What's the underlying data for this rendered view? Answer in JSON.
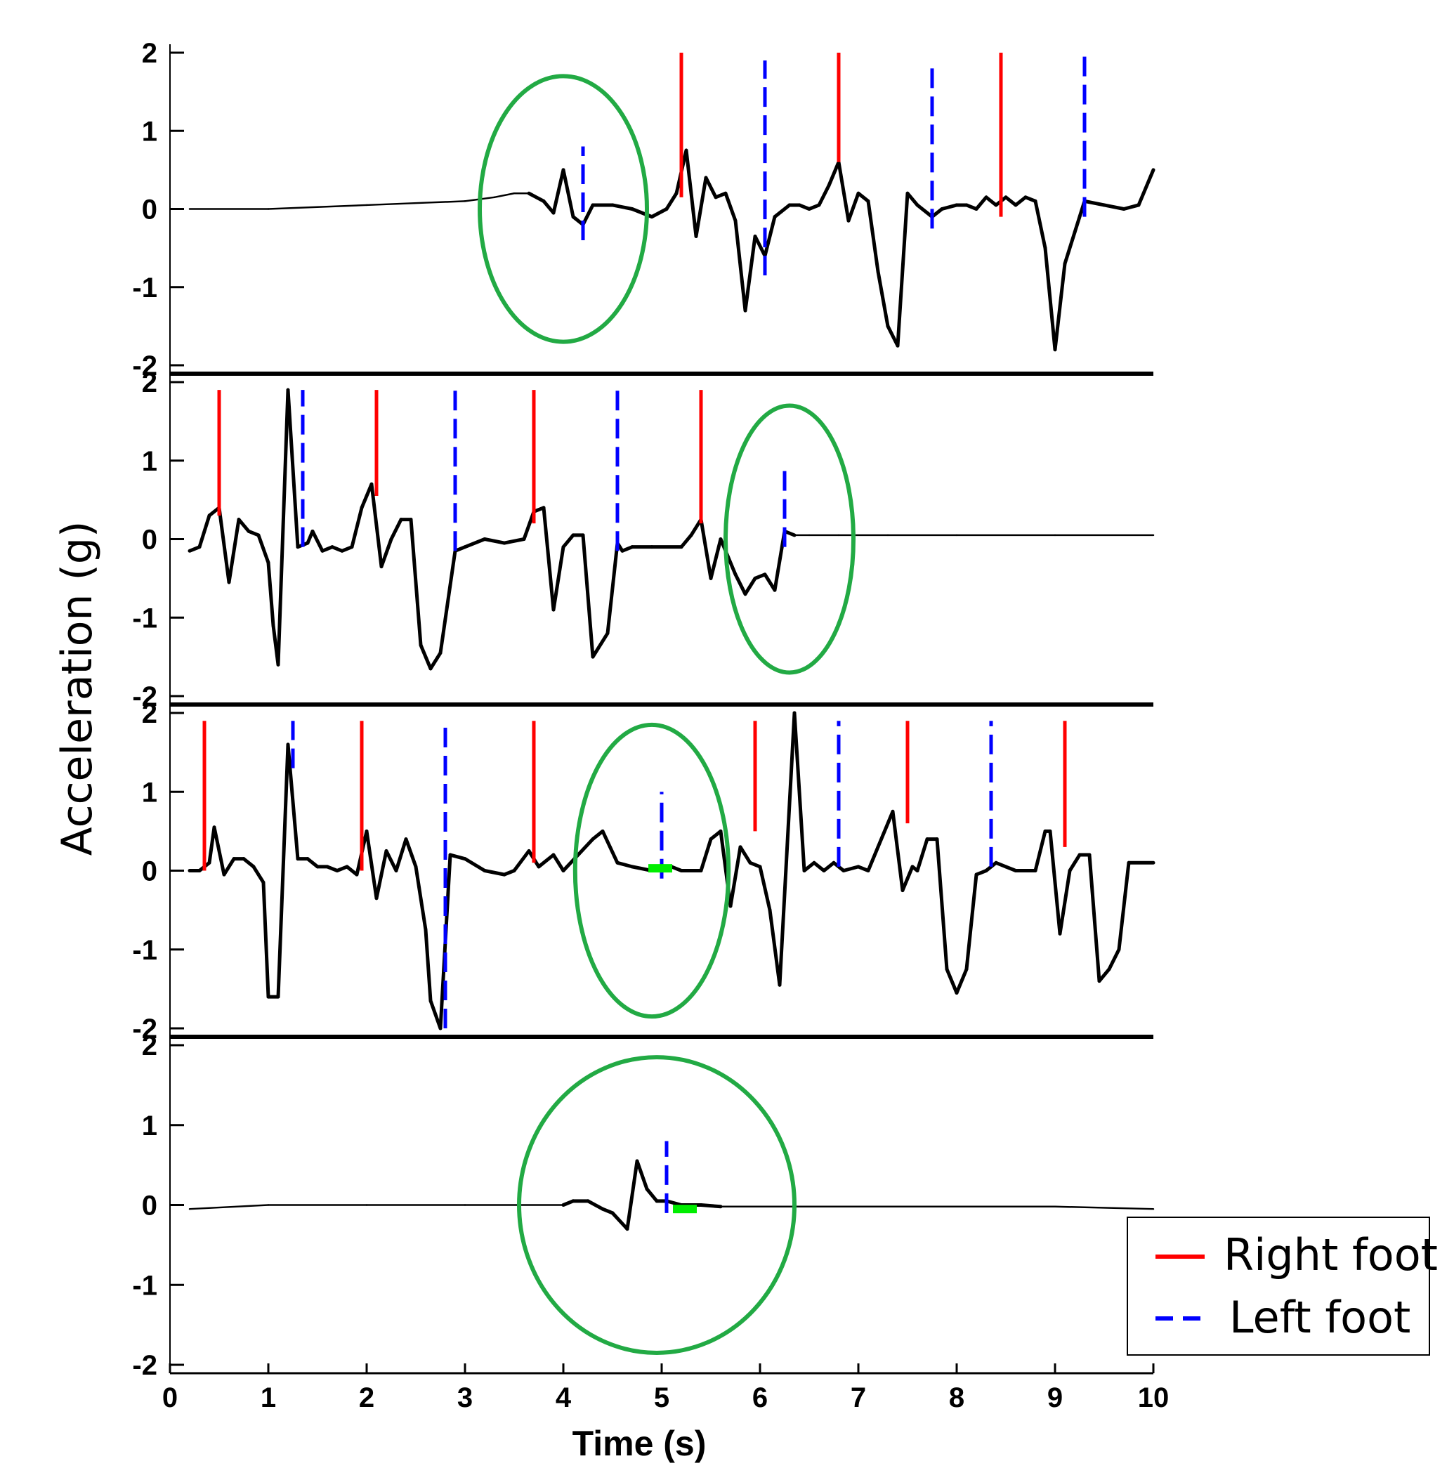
{
  "chart_data": {
    "type": "line",
    "ylabel": "Acceleration (g)",
    "xlabel": "Time (s)",
    "xlim": [
      0,
      10
    ],
    "ylim": [
      -2,
      2
    ],
    "x_ticks": [
      "0",
      "1",
      "2",
      "3",
      "4",
      "5",
      "6",
      "7",
      "8",
      "9",
      "10"
    ],
    "y_ticks": [
      "2",
      "1",
      "0",
      "-1",
      "-2"
    ],
    "colors": {
      "signal": "#000000",
      "right": "#ff0000",
      "left": "#0000ff",
      "circle": "#22aa44",
      "marker": "#00ee00"
    },
    "legend": [
      {
        "name": "Right foot",
        "style": "solid",
        "color": "#ff0000"
      },
      {
        "name": "Left foot",
        "style": "dashed",
        "color": "#0000ff"
      }
    ],
    "panels": [
      {
        "signal": [
          [
            0.2,
            0.0
          ],
          [
            1.0,
            0.0
          ],
          [
            2.0,
            0.05
          ],
          [
            3.0,
            0.1
          ],
          [
            3.3,
            0.15
          ],
          [
            3.5,
            0.2
          ],
          [
            3.65,
            0.2
          ],
          [
            3.8,
            0.1
          ],
          [
            3.9,
            -0.05
          ],
          [
            4.0,
            0.5
          ],
          [
            4.1,
            -0.1
          ],
          [
            4.2,
            -0.2
          ],
          [
            4.3,
            0.05
          ],
          [
            4.5,
            0.05
          ],
          [
            4.7,
            0.0
          ],
          [
            4.9,
            -0.1
          ],
          [
            5.05,
            0.0
          ],
          [
            5.15,
            0.2
          ],
          [
            5.25,
            0.75
          ],
          [
            5.35,
            -0.35
          ],
          [
            5.45,
            0.4
          ],
          [
            5.55,
            0.15
          ],
          [
            5.65,
            0.2
          ],
          [
            5.75,
            -0.15
          ],
          [
            5.85,
            -1.3
          ],
          [
            5.95,
            -0.35
          ],
          [
            6.05,
            -0.6
          ],
          [
            6.15,
            -0.1
          ],
          [
            6.3,
            0.05
          ],
          [
            6.4,
            0.05
          ],
          [
            6.5,
            0.0
          ],
          [
            6.6,
            0.05
          ],
          [
            6.7,
            0.3
          ],
          [
            6.8,
            0.6
          ],
          [
            6.9,
            -0.15
          ],
          [
            7.0,
            0.2
          ],
          [
            7.1,
            0.1
          ],
          [
            7.2,
            -0.8
          ],
          [
            7.3,
            -1.5
          ],
          [
            7.4,
            -1.75
          ],
          [
            7.5,
            0.2
          ],
          [
            7.6,
            0.05
          ],
          [
            7.75,
            -0.1
          ],
          [
            7.85,
            0.0
          ],
          [
            8.0,
            0.05
          ],
          [
            8.1,
            0.05
          ],
          [
            8.2,
            0.0
          ],
          [
            8.3,
            0.15
          ],
          [
            8.4,
            0.05
          ],
          [
            8.5,
            0.15
          ],
          [
            8.6,
            0.05
          ],
          [
            8.7,
            0.15
          ],
          [
            8.8,
            0.1
          ],
          [
            8.9,
            -0.5
          ],
          [
            9.0,
            -1.8
          ],
          [
            9.1,
            -0.7
          ],
          [
            9.2,
            -0.3
          ],
          [
            9.3,
            0.1
          ],
          [
            9.5,
            0.05
          ],
          [
            9.7,
            0.0
          ],
          [
            9.85,
            0.05
          ],
          [
            10.0,
            0.5
          ]
        ],
        "thin_until": 3.7,
        "right_foot": [
          [
            5.2,
            0.15,
            2.0
          ],
          [
            6.8,
            0.6,
            2.0
          ],
          [
            8.45,
            -0.1,
            2.0
          ]
        ],
        "left_foot": [
          [
            4.2,
            -0.4,
            0.8
          ],
          [
            6.05,
            -0.85,
            1.9
          ],
          [
            7.75,
            -0.25,
            1.9
          ],
          [
            9.3,
            -0.1,
            2.0
          ]
        ],
        "circle": {
          "cx": 4.0,
          "cy": 0.0,
          "rx": 0.85,
          "ry": 1.7
        },
        "marker": null
      },
      {
        "signal": [
          [
            0.2,
            -0.15
          ],
          [
            0.3,
            -0.1
          ],
          [
            0.4,
            0.3
          ],
          [
            0.5,
            0.4
          ],
          [
            0.6,
            -0.55
          ],
          [
            0.7,
            0.25
          ],
          [
            0.8,
            0.1
          ],
          [
            0.9,
            0.05
          ],
          [
            1.0,
            -0.3
          ],
          [
            1.05,
            -1.1
          ],
          [
            1.1,
            -1.6
          ],
          [
            1.2,
            1.9
          ],
          [
            1.3,
            -0.1
          ],
          [
            1.4,
            -0.05
          ],
          [
            1.45,
            0.1
          ],
          [
            1.55,
            -0.15
          ],
          [
            1.65,
            -0.1
          ],
          [
            1.75,
            -0.15
          ],
          [
            1.85,
            -0.1
          ],
          [
            1.95,
            0.4
          ],
          [
            2.05,
            0.7
          ],
          [
            2.15,
            -0.35
          ],
          [
            2.25,
            0.0
          ],
          [
            2.35,
            0.25
          ],
          [
            2.45,
            0.25
          ],
          [
            2.55,
            -1.35
          ],
          [
            2.65,
            -1.65
          ],
          [
            2.75,
            -1.45
          ],
          [
            2.9,
            -0.15
          ],
          [
            3.0,
            -0.1
          ],
          [
            3.2,
            0.0
          ],
          [
            3.4,
            -0.05
          ],
          [
            3.6,
            0.0
          ],
          [
            3.7,
            0.35
          ],
          [
            3.8,
            0.4
          ],
          [
            3.9,
            -0.9
          ],
          [
            4.0,
            -0.1
          ],
          [
            4.1,
            0.05
          ],
          [
            4.2,
            0.05
          ],
          [
            4.3,
            -1.5
          ],
          [
            4.45,
            -1.2
          ],
          [
            4.55,
            -0.05
          ],
          [
            4.6,
            -0.15
          ],
          [
            4.7,
            -0.1
          ],
          [
            4.9,
            -0.1
          ],
          [
            5.2,
            -0.1
          ],
          [
            5.3,
            0.05
          ],
          [
            5.4,
            0.25
          ],
          [
            5.5,
            -0.5
          ],
          [
            5.6,
            0.0
          ],
          [
            5.75,
            -0.45
          ],
          [
            5.85,
            -0.7
          ],
          [
            5.95,
            -0.5
          ],
          [
            6.05,
            -0.45
          ],
          [
            6.15,
            -0.65
          ],
          [
            6.25,
            0.1
          ],
          [
            6.35,
            0.05
          ],
          [
            6.5,
            0.05
          ],
          [
            6.8,
            0.05
          ],
          [
            7.3,
            0.05
          ],
          [
            8.0,
            0.05
          ],
          [
            9.0,
            0.05
          ],
          [
            10.0,
            0.05
          ]
        ],
        "thin_from": 6.3,
        "right_foot": [
          [
            0.5,
            0.3,
            1.9
          ],
          [
            2.1,
            0.55,
            1.9
          ],
          [
            3.7,
            0.2,
            1.9
          ],
          [
            5.4,
            0.2,
            1.9
          ]
        ],
        "left_foot": [
          [
            1.35,
            -0.1,
            1.9
          ],
          [
            2.9,
            -0.15,
            1.9
          ],
          [
            4.55,
            -0.15,
            1.9
          ],
          [
            6.25,
            -0.1,
            0.9
          ]
        ],
        "circle": {
          "cx": 6.3,
          "cy": 0.0,
          "rx": 0.65,
          "ry": 1.7
        },
        "marker": null
      },
      {
        "signal": [
          [
            0.2,
            0.0
          ],
          [
            0.3,
            0.0
          ],
          [
            0.4,
            0.1
          ],
          [
            0.45,
            0.55
          ],
          [
            0.55,
            -0.05
          ],
          [
            0.65,
            0.15
          ],
          [
            0.75,
            0.15
          ],
          [
            0.85,
            0.05
          ],
          [
            0.95,
            -0.15
          ],
          [
            1.0,
            -1.6
          ],
          [
            1.1,
            -1.6
          ],
          [
            1.2,
            1.6
          ],
          [
            1.3,
            0.15
          ],
          [
            1.4,
            0.15
          ],
          [
            1.5,
            0.05
          ],
          [
            1.6,
            0.05
          ],
          [
            1.7,
            0.0
          ],
          [
            1.8,
            0.05
          ],
          [
            1.9,
            -0.05
          ],
          [
            2.0,
            0.5
          ],
          [
            2.1,
            -0.35
          ],
          [
            2.2,
            0.25
          ],
          [
            2.3,
            0.0
          ],
          [
            2.4,
            0.4
          ],
          [
            2.5,
            0.05
          ],
          [
            2.6,
            -0.75
          ],
          [
            2.65,
            -1.65
          ],
          [
            2.75,
            -2.0
          ],
          [
            2.85,
            0.2
          ],
          [
            3.0,
            0.15
          ],
          [
            3.2,
            0.0
          ],
          [
            3.4,
            -0.05
          ],
          [
            3.5,
            0.0
          ],
          [
            3.65,
            0.25
          ],
          [
            3.75,
            0.05
          ],
          [
            3.9,
            0.2
          ],
          [
            4.0,
            0.0
          ],
          [
            4.3,
            0.4
          ],
          [
            4.4,
            0.5
          ],
          [
            4.55,
            0.1
          ],
          [
            4.7,
            0.05
          ],
          [
            4.9,
            0.0
          ],
          [
            5.0,
            0.0
          ],
          [
            5.1,
            0.05
          ],
          [
            5.2,
            0.0
          ],
          [
            5.3,
            0.0
          ],
          [
            5.4,
            0.0
          ],
          [
            5.5,
            0.4
          ],
          [
            5.6,
            0.5
          ],
          [
            5.7,
            -0.45
          ],
          [
            5.8,
            0.3
          ],
          [
            5.9,
            0.1
          ],
          [
            6.0,
            0.05
          ],
          [
            6.1,
            -0.5
          ],
          [
            6.2,
            -1.45
          ],
          [
            6.35,
            2.0
          ],
          [
            6.45,
            0.0
          ],
          [
            6.55,
            0.1
          ],
          [
            6.65,
            0.0
          ],
          [
            6.75,
            0.1
          ],
          [
            6.85,
            0.0
          ],
          [
            7.0,
            0.05
          ],
          [
            7.1,
            0.0
          ],
          [
            7.2,
            0.3
          ],
          [
            7.35,
            0.75
          ],
          [
            7.45,
            -0.25
          ],
          [
            7.55,
            0.05
          ],
          [
            7.6,
            0.0
          ],
          [
            7.7,
            0.4
          ],
          [
            7.8,
            0.4
          ],
          [
            7.9,
            -1.25
          ],
          [
            8.0,
            -1.55
          ],
          [
            8.1,
            -1.25
          ],
          [
            8.2,
            -0.05
          ],
          [
            8.3,
            0.0
          ],
          [
            8.4,
            0.1
          ],
          [
            8.5,
            0.05
          ],
          [
            8.6,
            0.0
          ],
          [
            8.8,
            0.0
          ],
          [
            8.9,
            0.5
          ],
          [
            8.95,
            0.5
          ],
          [
            9.05,
            -0.8
          ],
          [
            9.15,
            0.0
          ],
          [
            9.25,
            0.2
          ],
          [
            9.35,
            0.2
          ],
          [
            9.45,
            -1.4
          ],
          [
            9.55,
            -1.25
          ],
          [
            9.65,
            -1.0
          ],
          [
            9.75,
            0.1
          ],
          [
            10.0,
            0.1
          ]
        ],
        "right_foot": [
          [
            0.35,
            0.0,
            1.9
          ],
          [
            1.95,
            0.0,
            1.9
          ],
          [
            3.7,
            0.1,
            1.9
          ],
          [
            5.95,
            0.5,
            1.9
          ],
          [
            7.5,
            0.6,
            1.9
          ],
          [
            9.1,
            0.3,
            1.9
          ]
        ],
        "left_foot": [
          [
            1.25,
            1.3,
            1.9
          ],
          [
            2.8,
            -2.0,
            1.9
          ],
          [
            5.0,
            -0.1,
            1.0
          ],
          [
            6.8,
            0.05,
            1.9
          ],
          [
            8.35,
            0.05,
            1.9
          ]
        ],
        "circle": {
          "cx": 4.9,
          "cy": 0.0,
          "rx": 0.78,
          "ry": 1.85
        },
        "marker": {
          "x": 4.95,
          "y": 0.03
        }
      },
      {
        "signal": [
          [
            0.2,
            -0.05
          ],
          [
            1.0,
            0.0
          ],
          [
            2.0,
            0.0
          ],
          [
            3.0,
            0.0
          ],
          [
            4.0,
            0.0
          ],
          [
            4.1,
            0.05
          ],
          [
            4.25,
            0.05
          ],
          [
            4.4,
            -0.05
          ],
          [
            4.5,
            -0.1
          ],
          [
            4.65,
            -0.3
          ],
          [
            4.75,
            0.55
          ],
          [
            4.85,
            0.2
          ],
          [
            4.95,
            0.05
          ],
          [
            5.05,
            0.05
          ],
          [
            5.2,
            0.0
          ],
          [
            5.4,
            0.0
          ],
          [
            5.6,
            -0.02
          ],
          [
            6.0,
            -0.02
          ],
          [
            7.0,
            -0.02
          ],
          [
            8.0,
            -0.02
          ],
          [
            9.0,
            -0.02
          ],
          [
            10.0,
            -0.05
          ]
        ],
        "thick_from": 4.0,
        "thick_until": 5.6,
        "right_foot": [],
        "left_foot": [
          [
            5.05,
            -0.1,
            0.8
          ]
        ],
        "circle": {
          "cx": 4.95,
          "cy": 0.0,
          "rx": 1.4,
          "ry": 1.85
        },
        "marker": {
          "x": 5.2,
          "y": -0.05
        }
      }
    ]
  }
}
